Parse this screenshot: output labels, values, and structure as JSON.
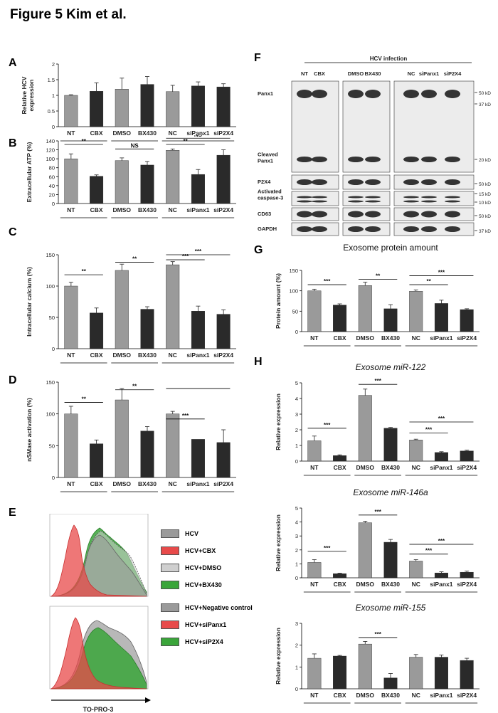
{
  "figure_title": "Figure 5 Kim et al.",
  "colors": {
    "gray_bar": "#9a9a9a",
    "dark_bar": "#2a2a2a",
    "red": "#e84a4a",
    "green": "#3aa53a"
  },
  "panels": {
    "A": {
      "letter": "A",
      "ylabel_lines": [
        "Relative HCV",
        "expression"
      ]
    },
    "B": {
      "letter": "B",
      "ylabel_lines": [
        "Extracellular ATP (%)"
      ]
    },
    "C": {
      "letter": "C",
      "ylabel_lines": [
        "Intracellular calcium (%)"
      ]
    },
    "D": {
      "letter": "D",
      "ylabel_lines": [
        "nSMase activation (%)"
      ]
    },
    "E": {
      "letter": "E",
      "xlabel": "TO-PRO-3",
      "legend_top": [
        {
          "label": "HCV",
          "color": "#9a9a9a"
        },
        {
          "label": "HCV+CBX",
          "color": "#e84a4a"
        },
        {
          "label": "HCV+DMSO",
          "color": "#cfcfcf"
        },
        {
          "label": "HCV+BX430",
          "color": "#3aa53a"
        }
      ],
      "legend_bottom": [
        {
          "label": "HCV+Negative control",
          "color": "#9a9a9a"
        },
        {
          "label": "HCV+siPanx1",
          "color": "#e84a4a"
        },
        {
          "label": "HCV+siP2X4",
          "color": "#3aa53a"
        }
      ]
    },
    "F": {
      "letter": "F",
      "header": "HCV infection",
      "lanes": [
        "NT",
        "CBX",
        "DMSO",
        "BX430",
        "NC",
        "siPanx1",
        "siP2X4"
      ],
      "rows": [
        {
          "label_lines": [
            "Panx1"
          ]
        },
        {
          "label_lines": [
            "Cleaved",
            "Panx1"
          ]
        },
        {
          "label_lines": [
            "P2X4"
          ]
        },
        {
          "label_lines": [
            "Activated",
            "caspase-3"
          ]
        },
        {
          "label_lines": [
            "CD63"
          ]
        },
        {
          "label_lines": [
            "GAPDH"
          ]
        }
      ],
      "markers": [
        "50 kD",
        "37 kD",
        "20 kD",
        "50 kD",
        "15 kD",
        "10 kD",
        "50 kD",
        "37 kD"
      ]
    },
    "G": {
      "letter": "G",
      "title": "Exosome protein amount",
      "ylabel_lines": [
        "Protein amount (%)"
      ]
    },
    "H": {
      "letter": "H",
      "titles": [
        "Exosome miR-122",
        "Exosome  miR-146a",
        "Exosome miR-155"
      ],
      "ylabel_lines": [
        "Relative expression"
      ]
    }
  },
  "chart_data": [
    {
      "id": "A",
      "type": "bar",
      "categories": [
        "NT",
        "CBX",
        "DMSO",
        "BX430",
        "NC",
        "siPanx1",
        "siP2X4"
      ],
      "values": [
        1.0,
        1.13,
        1.2,
        1.35,
        1.12,
        1.3,
        1.27
      ],
      "errors": [
        0.02,
        0.27,
        0.35,
        0.25,
        0.2,
        0.13,
        0.1
      ],
      "ylim": [
        0,
        2
      ],
      "yticks": [
        0,
        0.5,
        1,
        1.5,
        2
      ],
      "ytick_labels": [
        "0",
        "0.5",
        "1",
        "1.5",
        "2"
      ],
      "ylabel": "Relative HCV expression",
      "sig": []
    },
    {
      "id": "B",
      "type": "bar",
      "categories": [
        "NT",
        "CBX",
        "DMSO",
        "BX430",
        "NC",
        "siPanx1",
        "siP2X4"
      ],
      "values": [
        100,
        61,
        96,
        86,
        119,
        65,
        108
      ],
      "errors": [
        11,
        3,
        6,
        8,
        3,
        11,
        12
      ],
      "ylim": [
        0,
        140
      ],
      "yticks": [
        0,
        20,
        40,
        60,
        80,
        100,
        120,
        140
      ],
      "ytick_labels": [
        "0",
        "20",
        "40",
        "60",
        "80",
        "100",
        "120",
        "140"
      ],
      "ylabel": "Extracellular ATP (%)",
      "sig": [
        {
          "from": 0,
          "to": 1,
          "label": "**",
          "y": 132
        },
        {
          "from": 2,
          "to": 3,
          "label": "NS",
          "y": 122
        },
        {
          "from": 4,
          "to": 5,
          "label": "**",
          "y": 132
        },
        {
          "from": 4,
          "to": 6,
          "label": "NS",
          "y": 146
        }
      ]
    },
    {
      "id": "C",
      "type": "bar",
      "categories": [
        "NT",
        "CBX",
        "DMSO",
        "BX430",
        "NC",
        "siPanx1",
        "siP2X4"
      ],
      "values": [
        100,
        57,
        125,
        63,
        134,
        60,
        55
      ],
      "errors": [
        6,
        8,
        10,
        4,
        5,
        8,
        7
      ],
      "ylim": [
        0,
        150
      ],
      "yticks": [
        0,
        50,
        100,
        150
      ],
      "ytick_labels": [
        "0",
        "50",
        "100",
        "150"
      ],
      "ylabel": "Intracellular calcium (%)",
      "sig": [
        {
          "from": 0,
          "to": 1,
          "label": "**",
          "y": 118
        },
        {
          "from": 2,
          "to": 3,
          "label": "**",
          "y": 138
        },
        {
          "from": 4,
          "to": 5,
          "label": "***",
          "y": 142
        },
        {
          "from": 4,
          "to": 6,
          "label": "***",
          "y": 150
        }
      ]
    },
    {
      "id": "D",
      "type": "bar",
      "categories": [
        "NT",
        "CBX",
        "DMSO",
        "BX430",
        "NC",
        "siPanx1",
        "siP2X4"
      ],
      "values": [
        100,
        53,
        122,
        73,
        100,
        60,
        55
      ],
      "errors": [
        12,
        6,
        18,
        7,
        4,
        0,
        20
      ],
      "ylim": [
        0,
        150
      ],
      "yticks": [
        0,
        50,
        100,
        150
      ],
      "ytick_labels": [
        "0",
        "50",
        "100",
        "150"
      ],
      "ylabel": "nSMase activation (%)",
      "sig": [
        {
          "from": 0,
          "to": 1,
          "label": "**",
          "y": 118
        },
        {
          "from": 2,
          "to": 3,
          "label": "**",
          "y": 138
        },
        {
          "from": 4,
          "to": 5,
          "label": "***",
          "y": 92
        },
        {
          "from": 4,
          "to": 6,
          "label": "",
          "y": 140
        }
      ]
    },
    {
      "id": "G",
      "type": "bar",
      "title": "Exosome protein amount",
      "categories": [
        "NT",
        "CBX",
        "DMSO",
        "BX430",
        "NC",
        "siPanx1",
        "siP2X4"
      ],
      "values": [
        100,
        65,
        113,
        56,
        99,
        69,
        54
      ],
      "errors": [
        4,
        3,
        8,
        10,
        3,
        8,
        2
      ],
      "ylim": [
        0,
        150
      ],
      "yticks": [
        0,
        50,
        100,
        150
      ],
      "ytick_labels": [
        "0",
        "50",
        "100",
        "150"
      ],
      "ylabel": "Protein amount (%)",
      "sig": [
        {
          "from": 0,
          "to": 1,
          "label": "***",
          "y": 115
        },
        {
          "from": 2,
          "to": 3,
          "label": "**",
          "y": 128
        },
        {
          "from": 4,
          "to": 5,
          "label": "**",
          "y": 115
        },
        {
          "from": 4,
          "to": 6,
          "label": "***",
          "y": 137
        }
      ]
    },
    {
      "id": "H1",
      "type": "bar",
      "title": "Exosome miR-122",
      "categories": [
        "NT",
        "CBX",
        "DMSO",
        "BX430",
        "NC",
        "siPanx1",
        "siP2X4"
      ],
      "values": [
        1.3,
        0.35,
        4.2,
        2.1,
        1.35,
        0.55,
        0.65
      ],
      "errors": [
        0.3,
        0.05,
        0.4,
        0.05,
        0.05,
        0.05,
        0.05
      ],
      "ylim": [
        0,
        5
      ],
      "yticks": [
        0,
        1,
        2,
        3,
        4,
        5
      ],
      "ytick_labels": [
        "0",
        "1",
        "2",
        "3",
        "4",
        "5"
      ],
      "ylabel": "Relative expression",
      "sig": [
        {
          "from": 0,
          "to": 1,
          "label": "***",
          "y": 2.1
        },
        {
          "from": 2,
          "to": 3,
          "label": "***",
          "y": 4.9
        },
        {
          "from": 4,
          "to": 5,
          "label": "***",
          "y": 1.8
        },
        {
          "from": 4,
          "to": 6,
          "label": "***",
          "y": 2.5
        }
      ]
    },
    {
      "id": "H2",
      "type": "bar",
      "title": "Exosome  miR-146a",
      "categories": [
        "NT",
        "CBX",
        "DMSO",
        "BX430",
        "NC",
        "siPanx1",
        "siP2X4"
      ],
      "values": [
        1.1,
        0.3,
        3.95,
        2.55,
        1.2,
        0.35,
        0.4
      ],
      "errors": [
        0.2,
        0.03,
        0.1,
        0.2,
        0.1,
        0.08,
        0.08
      ],
      "ylim": [
        0,
        5
      ],
      "yticks": [
        0,
        1,
        2,
        3,
        4,
        5
      ],
      "ytick_labels": [
        "0",
        "1",
        "2",
        "3",
        "4",
        "5"
      ],
      "ylabel": "Relative expression",
      "sig": [
        {
          "from": 0,
          "to": 1,
          "label": "***",
          "y": 1.9
        },
        {
          "from": 2,
          "to": 3,
          "label": "***",
          "y": 4.5
        },
        {
          "from": 4,
          "to": 5,
          "label": "***",
          "y": 1.7
        },
        {
          "from": 4,
          "to": 6,
          "label": "***",
          "y": 2.4
        }
      ]
    },
    {
      "id": "H3",
      "type": "bar",
      "title": "Exosome miR-155",
      "categories": [
        "NT",
        "CBX",
        "DMSO",
        "BX430",
        "NC",
        "siPanx1",
        "siP2X4"
      ],
      "values": [
        1.4,
        1.5,
        2.05,
        0.5,
        1.45,
        1.45,
        1.3
      ],
      "errors": [
        0.2,
        0.03,
        0.12,
        0.2,
        0.12,
        0.1,
        0.1
      ],
      "ylim": [
        0,
        3
      ],
      "yticks": [
        0,
        1,
        2,
        3
      ],
      "ytick_labels": [
        "0",
        "1",
        "2",
        "3"
      ],
      "ylabel": "Relative expression",
      "sig": [
        {
          "from": 2,
          "to": 3,
          "label": "***",
          "y": 2.35
        }
      ]
    }
  ]
}
